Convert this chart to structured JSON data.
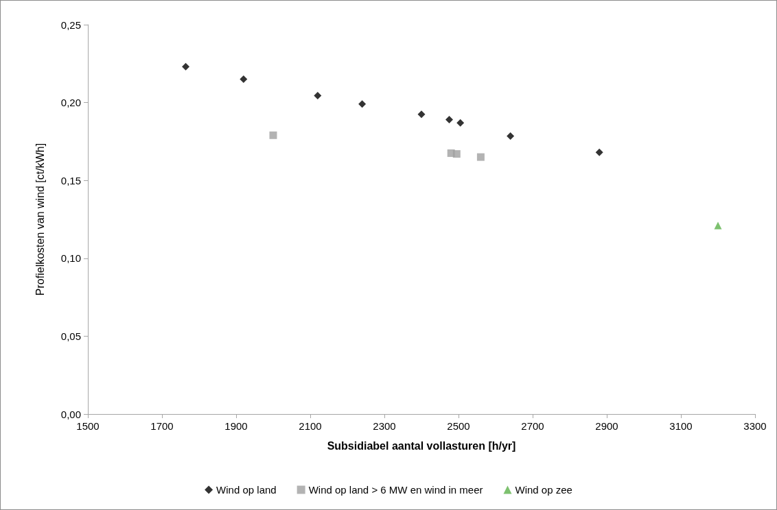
{
  "chart_data": {
    "type": "scatter",
    "xlabel": "Subsidiabel aantal vollasturen [h/yr]",
    "ylabel": "Profielkosten van wind [ct/kWh]",
    "xlim": [
      1500,
      3300
    ],
    "xticks": [
      1500,
      1700,
      1900,
      2100,
      2300,
      2500,
      2700,
      2900,
      3100,
      3300
    ],
    "ylim": [
      0,
      0.25
    ],
    "yticks": [
      {
        "value": 0,
        "label": "0,00"
      },
      {
        "value": 0.05,
        "label": "0,05"
      },
      {
        "value": 0.1,
        "label": "0,10"
      },
      {
        "value": 0.15,
        "label": "0,15"
      },
      {
        "value": 0.2,
        "label": "0,20"
      },
      {
        "value": 0.25,
        "label": "0,25"
      }
    ],
    "grid": false,
    "legend": "bottom",
    "series": [
      {
        "name": "Wind op land",
        "color": "#000000",
        "marker": "diamond",
        "x": [
          1764,
          1920,
          2120,
          2240,
          2400,
          2475,
          2505,
          2640,
          2880
        ],
        "values": [
          0.223,
          0.215,
          0.2045,
          0.199,
          0.1925,
          0.189,
          0.187,
          0.1785,
          0.168
        ]
      },
      {
        "name": "Wind op land > 6 MW en wind in meer",
        "color": "#a0a0a0",
        "marker": "square",
        "x": [
          2000,
          2480,
          2495,
          2560
        ],
        "values": [
          0.179,
          0.1675,
          0.167,
          0.165
        ]
      },
      {
        "name": "Wind op zee",
        "color": "#5db14b",
        "marker": "triangle",
        "x": [
          3200
        ],
        "values": [
          0.121
        ]
      }
    ]
  }
}
